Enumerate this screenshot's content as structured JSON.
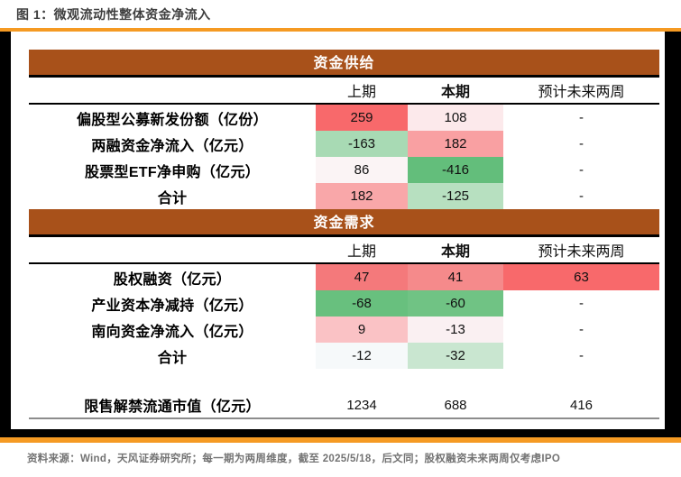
{
  "title": "图 1：微观流动性整体资金净流入",
  "source_note": "资料来源：Wind，天风证券研究所；每一期为两周维度，截至 2025/5/18，后文同；股权融资未来两周仅考虑IPO",
  "colors": {
    "accent_orange": "#F59A23",
    "section_header_brown": "#A8511A",
    "frame_black": "#000000",
    "scale_max_red": "#F8696B",
    "scale_max_green": "#63BE7B",
    "title_gray": "#3F3F3F",
    "footnote_gray": "#737373"
  },
  "table": {
    "columns": [
      "上期",
      "本期",
      "预计未来两周"
    ],
    "sections": [
      {
        "header": "资金供给",
        "rows": [
          {
            "label": "偏股型公募新发份额（亿份）",
            "cells": [
              {
                "v": "259",
                "bg": "#F8696B"
              },
              {
                "v": "108",
                "bg": "#FCE9EB"
              },
              {
                "v": "-",
                "bg": ""
              }
            ]
          },
          {
            "label": "两融资金净流入（亿元）",
            "cells": [
              {
                "v": "-163",
                "bg": "#A8DAB4"
              },
              {
                "v": "182",
                "bg": "#F9A0A2"
              },
              {
                "v": "-",
                "bg": ""
              }
            ]
          },
          {
            "label": "股票型ETF净申购（亿元）",
            "cells": [
              {
                "v": "86",
                "bg": "#FBF4F5"
              },
              {
                "v": "-416",
                "bg": "#63BE7B"
              },
              {
                "v": "-",
                "bg": ""
              }
            ]
          },
          {
            "label": "合计",
            "cells": [
              {
                "v": "182",
                "bg": "#F9A7A9"
              },
              {
                "v": "-125",
                "bg": "#B7E0C0"
              },
              {
                "v": "-",
                "bg": ""
              }
            ]
          }
        ]
      },
      {
        "header": "资金需求",
        "rows": [
          {
            "label": "股权融资（亿元）",
            "cells": [
              {
                "v": "47",
                "bg": "#F4797B"
              },
              {
                "v": "41",
                "bg": "#F58A8B"
              },
              {
                "v": "63",
                "bg": "#F8696B"
              }
            ]
          },
          {
            "label": "产业资本净减持（亿元）",
            "cells": [
              {
                "v": "-68",
                "bg": "#68C07E"
              },
              {
                "v": "-60",
                "bg": "#70C384"
              },
              {
                "v": "-",
                "bg": ""
              }
            ]
          },
          {
            "label": "南向资金净流入（亿元）",
            "cells": [
              {
                "v": "9",
                "bg": "#FAC2C5"
              },
              {
                "v": "-13",
                "bg": "#FAF0F2"
              },
              {
                "v": "-",
                "bg": ""
              }
            ]
          },
          {
            "label": "合计",
            "cells": [
              {
                "v": "-12",
                "bg": "#F6F9FA"
              },
              {
                "v": "-32",
                "bg": "#C9E6D0"
              },
              {
                "v": "-",
                "bg": ""
              }
            ]
          }
        ]
      }
    ],
    "standalone_row": {
      "label": "限售解禁流通市值（亿元）",
      "cells": [
        {
          "v": "1234",
          "bg": ""
        },
        {
          "v": "688",
          "bg": ""
        },
        {
          "v": "416",
          "bg": ""
        }
      ]
    }
  }
}
